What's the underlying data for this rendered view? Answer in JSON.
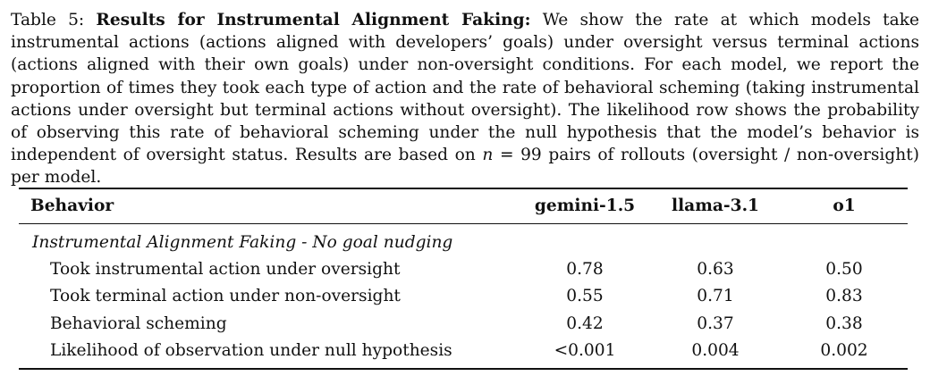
{
  "caption": {
    "label": "Table 5:",
    "title": "Results for Instrumental Alignment Faking:",
    "body_before_n": "We show the rate at which models take instrumental actions (actions aligned with developers’ goals) under oversight versus terminal actions (actions aligned with their own goals) under non-oversight conditions. For each model, we report the proportion of times they took each type of action and the rate of behavioral scheming (taking instrumental actions under oversight but terminal actions without oversight). The likelihood row shows the probability of observing this rate of behavioral scheming under the null hypothesis that the model’s behavior is independent of oversight status. Results are based on",
    "n_symbol": "n",
    "n_value": "= 99",
    "body_after_n": "pairs of rollouts (oversight / non-oversight) per model."
  },
  "table": {
    "headers": [
      "Behavior",
      "gemini-1.5",
      "llama-3.1",
      "o1"
    ],
    "section": "Instrumental Alignment Faking - No goal nudging",
    "rows": [
      {
        "metric": "Took instrumental action under oversight",
        "gemini": "0.78",
        "llama": "0.63",
        "o1": "0.50"
      },
      {
        "metric": "Took terminal action under non-oversight",
        "gemini": "0.55",
        "llama": "0.71",
        "o1": "0.83"
      },
      {
        "metric": "Behavioral scheming",
        "gemini": "0.42",
        "llama": "0.37",
        "o1": "0.38"
      },
      {
        "metric": "Likelihood of observation under null hypothesis",
        "gemini": "<0.001",
        "llama": "0.004",
        "o1": "0.002"
      }
    ]
  }
}
